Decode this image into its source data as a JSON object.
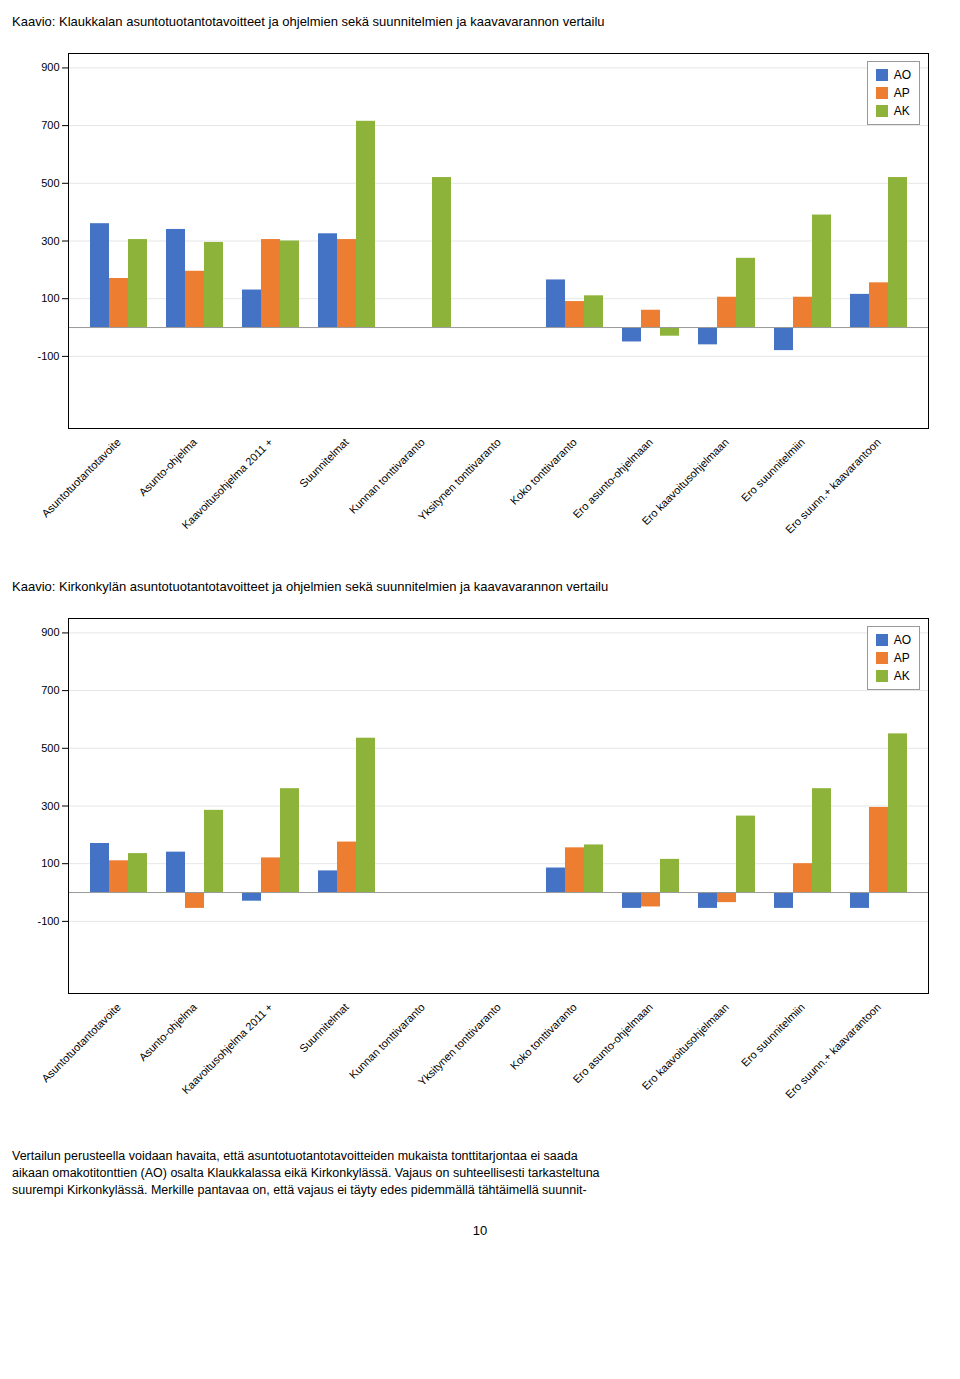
{
  "chart_data": [
    {
      "type": "bar",
      "title": "Kaavio: Klaukkalan asuntotuotantotavoitteet ja ohjelmien sekä suunnitelmien ja kaavavarannon vertailu",
      "categories": [
        "Asuntotuotantotavoite",
        "Asunto-ohjelma",
        "Kaavoitusohjelma 2011 +",
        "Suunnitelmat",
        "Kunnan tonttivaranto",
        "Yksitynen tonttivaranto",
        "Koko tonttivaranto",
        "Ero asunto-ohjelmaan",
        "Ero kaavoitusohjelmaan",
        "Ero suunnitelmiin",
        "Ero suunn.+ kaavarantoon"
      ],
      "series": [
        {
          "name": "AO",
          "color": "#4472C4",
          "values": [
            360,
            340,
            130,
            325,
            0,
            0,
            165,
            -50,
            -60,
            -80,
            115
          ]
        },
        {
          "name": "AP",
          "color": "#ED7D31",
          "values": [
            170,
            195,
            305,
            305,
            0,
            0,
            90,
            60,
            105,
            105,
            155
          ]
        },
        {
          "name": "AK",
          "color": "#8DB33A",
          "values": [
            305,
            295,
            300,
            715,
            520,
            0,
            110,
            -30,
            240,
            390,
            520
          ]
        }
      ],
      "ylim": [
        -350,
        950
      ],
      "yticks": [
        -100,
        100,
        300,
        500,
        700,
        900
      ],
      "grid": true,
      "legend": "upper right"
    },
    {
      "type": "bar",
      "title": "Kaavio: Kirkonkylän asuntotuotantotavoitteet ja ohjelmien sekä suunnitelmien ja kaavavarannon vertailu",
      "categories": [
        "Asuntotuotantotavoite",
        "Asunto-ohjelma",
        "Kaavoitusohjelma 2011 +",
        "Suunnitelmat",
        "Kunnan tonttivaranto",
        "Yksitynen tonttivaranto",
        "Koko tonttivaranto",
        "Ero asunto-ohjelmaan",
        "Ero kaavoitusohjelmaan",
        "Ero suunnitelmiin",
        "Ero suunn.+ kaavarantoon"
      ],
      "series": [
        {
          "name": "AO",
          "color": "#4472C4",
          "values": [
            170,
            140,
            -30,
            75,
            0,
            0,
            85,
            -55,
            -55,
            -55,
            -55
          ]
        },
        {
          "name": "AP",
          "color": "#ED7D31",
          "values": [
            110,
            -55,
            120,
            175,
            0,
            0,
            155,
            -50,
            -35,
            100,
            295
          ]
        },
        {
          "name": "AK",
          "color": "#8DB33A",
          "values": [
            135,
            285,
            360,
            535,
            0,
            0,
            165,
            115,
            265,
            360,
            550
          ]
        }
      ],
      "ylim": [
        -350,
        950
      ],
      "yticks": [
        -100,
        100,
        300,
        500,
        700,
        900
      ],
      "grid": true,
      "legend": "upper right"
    }
  ],
  "annotations": [
    "Vertailun perusteella voidaan havaita, että asuntotuotantotavoitteiden mukaista tonttitarjontaa ei saada",
    "aikaan omakotitonttien (AO) osalta Klaukkalassa eikä Kirkonkylässä. Vajaus on suhteellisesti tarkasteltuna",
    "suurempi Kirkonkylässä.  Merkille pantavaa on, että vajaus ei täyty edes pidemmällä tähtäimellä suunnit-",
    "10"
  ]
}
